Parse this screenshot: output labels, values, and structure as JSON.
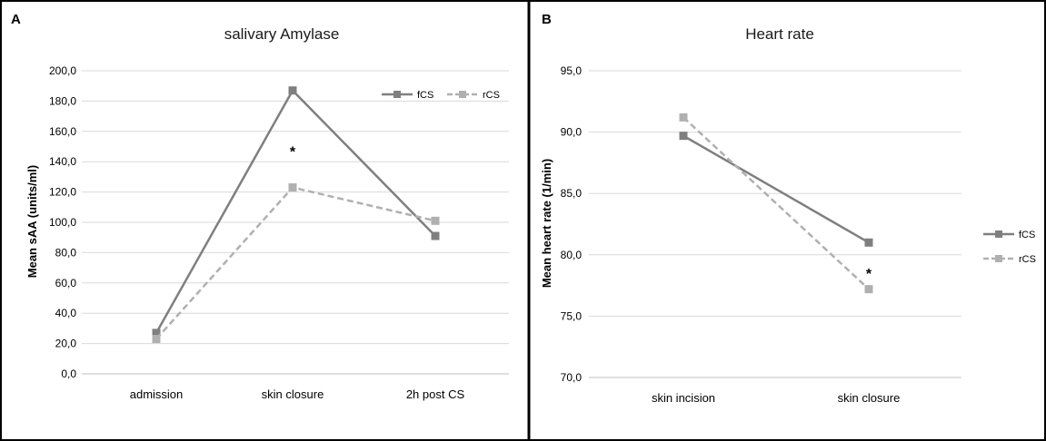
{
  "colors": {
    "fCS": "#7f7f7f",
    "rCS": "#b0b0b0",
    "grid": "#d9d9d9",
    "frame": "#000000"
  },
  "chart_data": [
    {
      "panel": "A",
      "type": "line",
      "title": "salivary Amylase",
      "ylabel": "Mean sAA (units/ml)",
      "categories": [
        "admission",
        "skin closure",
        "2h post CS"
      ],
      "yticks": [
        "0,0",
        "20,0",
        "40,0",
        "60,0",
        "80,0",
        "100,0",
        "120,0",
        "140,0",
        "160,0",
        "180,0",
        "200,0"
      ],
      "ylim": [
        0,
        200
      ],
      "ystep": 20,
      "series": [
        {
          "name": "fCS",
          "values": [
            27,
            187,
            91
          ],
          "style": "solid"
        },
        {
          "name": "rCS",
          "values": [
            23,
            123,
            101
          ],
          "style": "dashed"
        }
      ],
      "annotations": [
        {
          "text": "*",
          "category_index": 1,
          "y": 147
        }
      ],
      "legend": "top-right",
      "grid": true
    },
    {
      "panel": "B",
      "type": "line",
      "title": "Heart rate",
      "ylabel": "Mean heart rate (1/min)",
      "categories": [
        "skin incision",
        "skin closure"
      ],
      "yticks": [
        "70,0",
        "75,0",
        "80,0",
        "85,0",
        "90,0",
        "95,0"
      ],
      "ylim": [
        70,
        95
      ],
      "ystep": 5,
      "series": [
        {
          "name": "fCS",
          "values": [
            89.7,
            81.0
          ],
          "style": "solid"
        },
        {
          "name": "rCS",
          "values": [
            91.2,
            77.2
          ],
          "style": "dashed"
        }
      ],
      "annotations": [
        {
          "text": "*",
          "category_index": 1,
          "y": 78.5
        }
      ],
      "legend": "right",
      "grid": true
    }
  ]
}
